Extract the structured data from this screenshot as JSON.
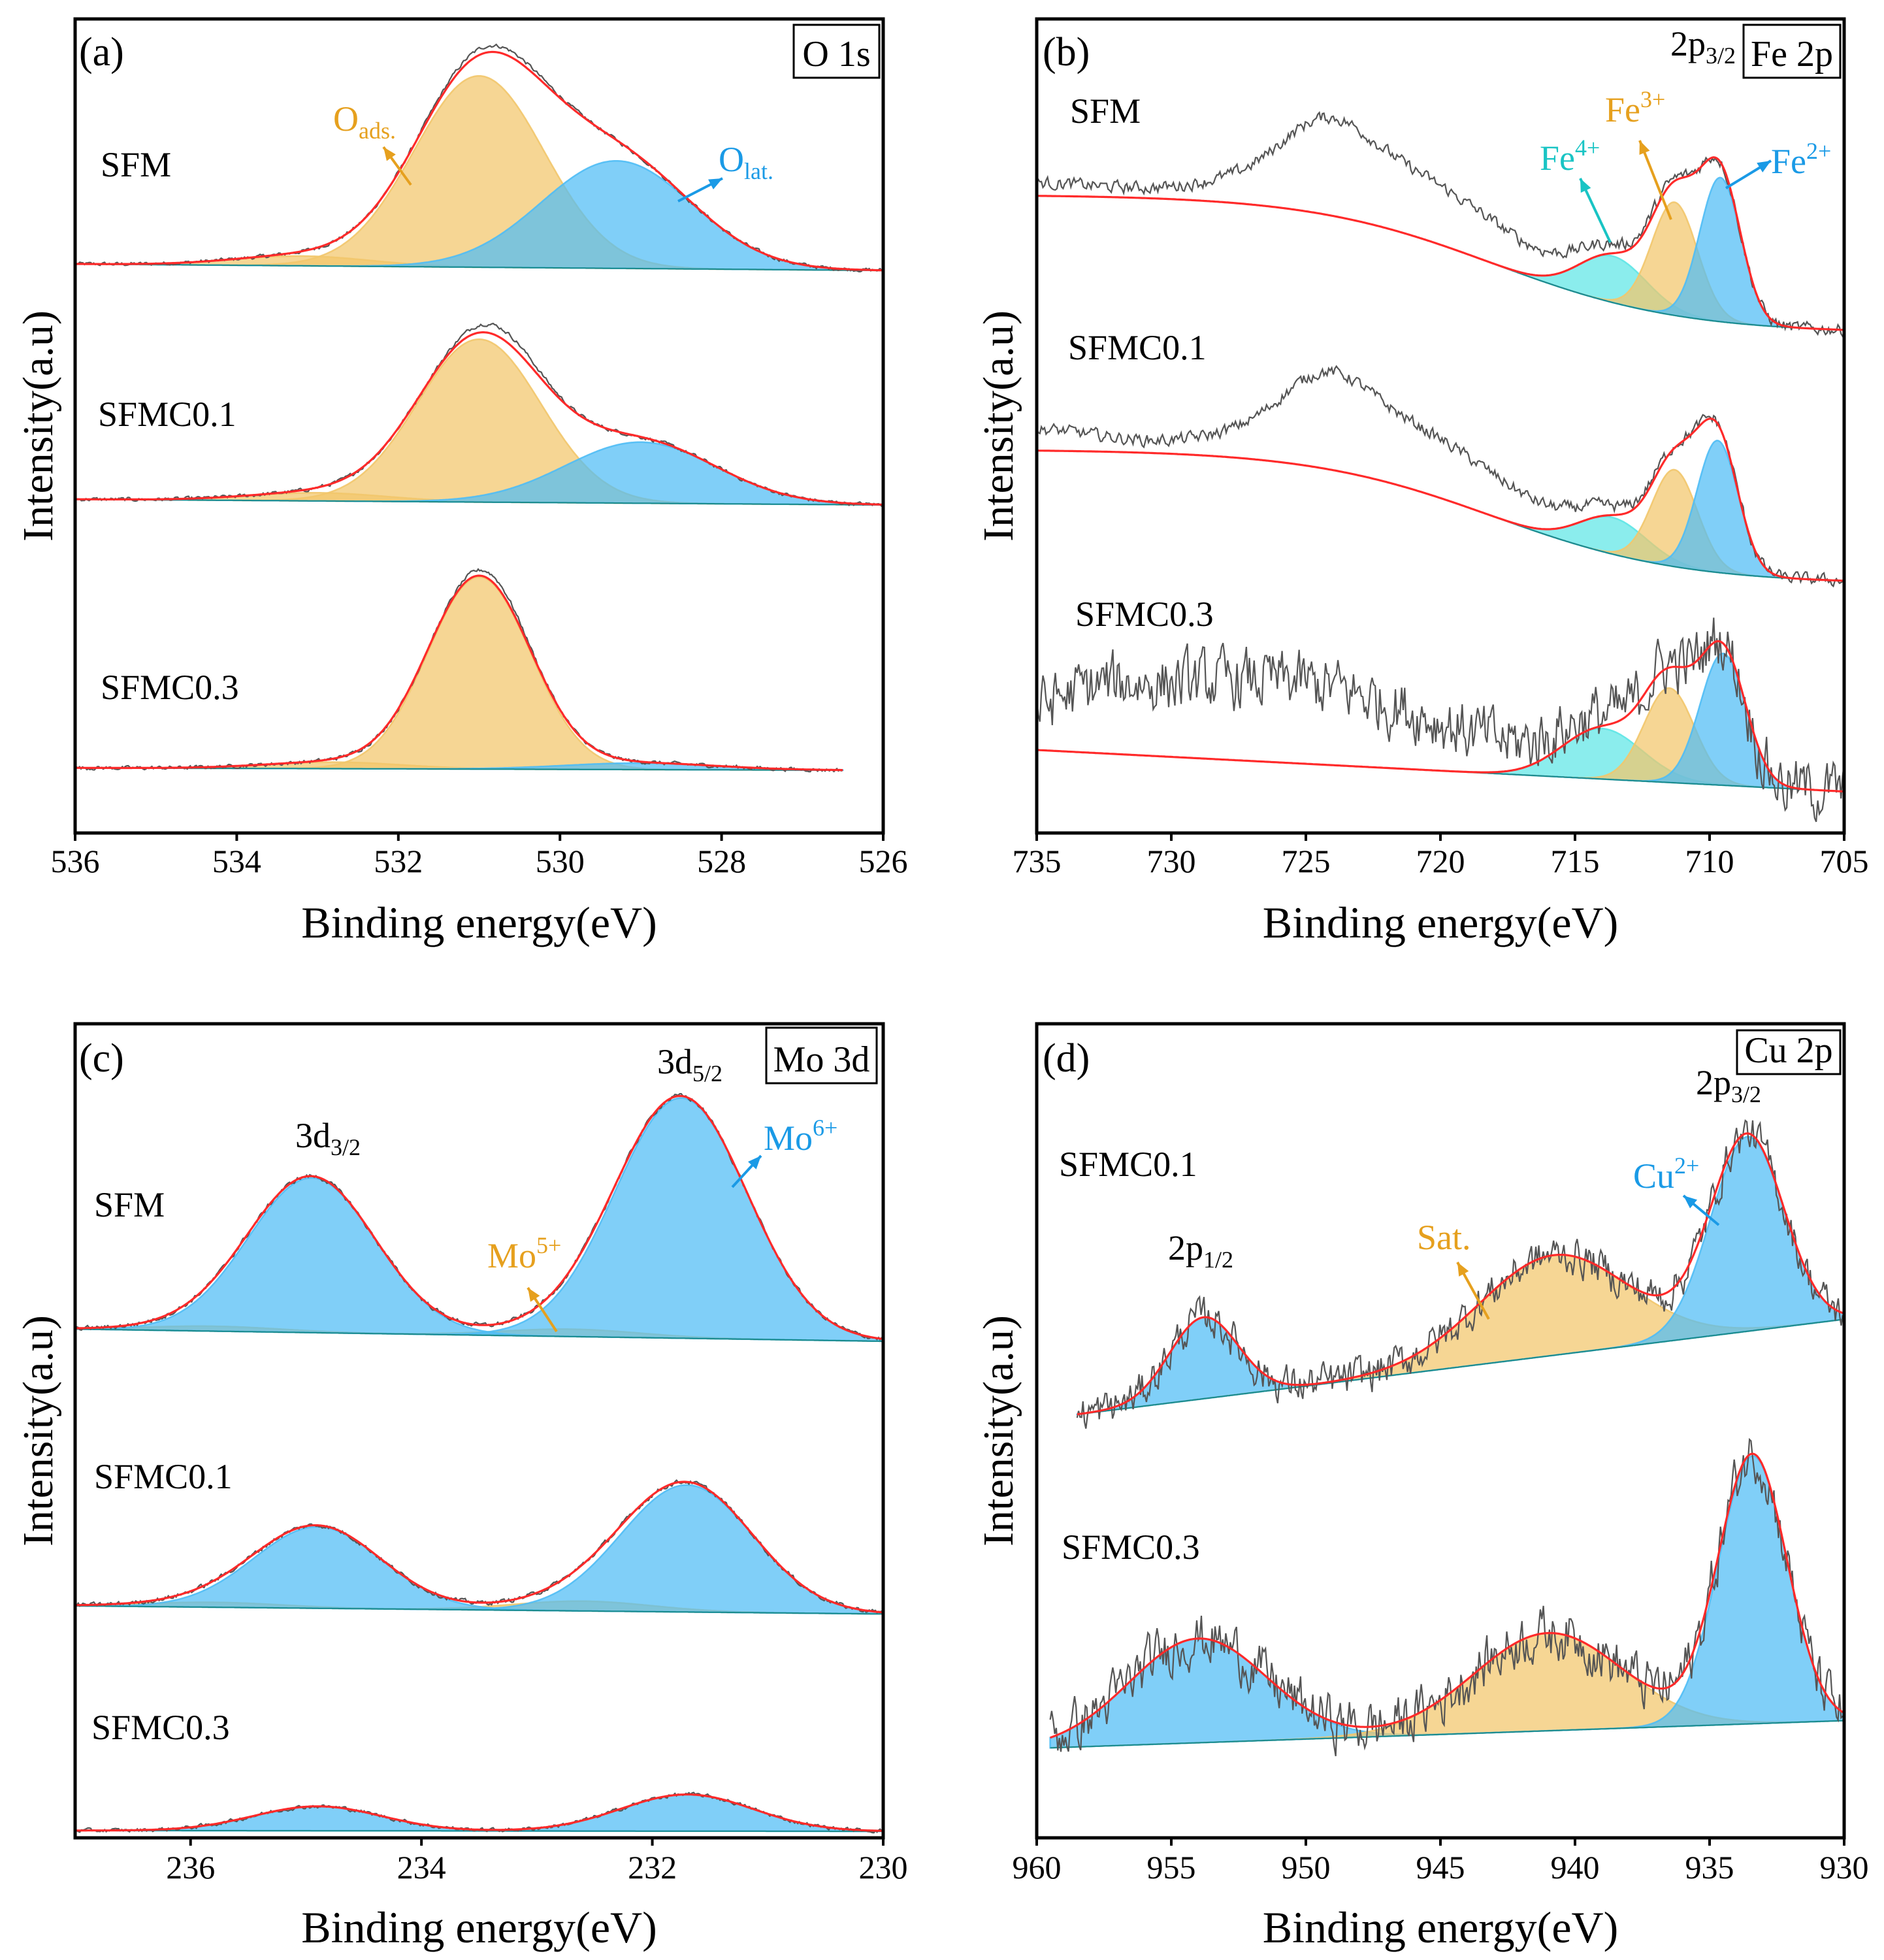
{
  "colors": {
    "orange": "#f2c66b",
    "blue": "#4fbdf5",
    "cyan": "#5ee6e6",
    "fit": "#ff2a2a",
    "raw": "#555555",
    "label_orange": "#e6a01e",
    "label_blue": "#1a9ae6",
    "label_cyan": "#19c4c4"
  },
  "chart_data": [
    {
      "id": "a",
      "type": "area",
      "panel_label": "(a)",
      "title": "O 1s",
      "xlabel": "Binding energy(eV)",
      "ylabel": "Intensity(a.u)",
      "xlim": [
        536,
        526
      ],
      "xticks": [
        536,
        534,
        532,
        530,
        528,
        526
      ],
      "ylim": [
        0,
        100
      ],
      "annotations": [
        {
          "id": "oads",
          "main": "O",
          "sub": "ads.",
          "sup": "",
          "color": "label_orange"
        },
        {
          "id": "olat",
          "main": "O",
          "sub": "lat.",
          "sup": "",
          "color": "label_blue"
        }
      ],
      "samples": [
        {
          "name": "SFM",
          "range": [
            536,
            526
          ],
          "baseline": {
            "type": "linear",
            "left": 69.9,
            "right": 69.1
          },
          "components": [
            {
              "name": "Oads",
              "center": 531.0,
              "fwhm": 1.9,
              "height": 23.5,
              "color": "orange"
            },
            {
              "name": "Oads-tail",
              "center": 533.2,
              "fwhm": 2.0,
              "height": 1.2,
              "color": "orange"
            },
            {
              "name": "Olat",
              "center": 529.3,
              "fwhm": 2.2,
              "height": 13.2,
              "color": "blue"
            }
          ],
          "raw_extra": [
            [
              530.8,
              0.8,
              1.2
            ]
          ],
          "noise": 0.25
        },
        {
          "name": "SFMC0.1",
          "range": [
            536,
            526
          ],
          "baseline": {
            "type": "linear",
            "left": 41.0,
            "right": 40.3
          },
          "components": [
            {
              "name": "Oads",
              "center": 531.0,
              "fwhm": 1.8,
              "height": 20,
              "color": "orange"
            },
            {
              "name": "Oads-tail",
              "center": 533.0,
              "fwhm": 2.0,
              "height": 1.0,
              "color": "orange"
            },
            {
              "name": "Olat",
              "center": 529.0,
              "fwhm": 2.2,
              "height": 7.5,
              "color": "blue"
            }
          ],
          "raw_extra": [
            [
              530.7,
              1.2,
              1.0
            ]
          ],
          "noise": 0.25
        },
        {
          "name": "SFMC0.3",
          "range": [
            536,
            526.5
          ],
          "baseline": {
            "type": "linear",
            "left": 8.0,
            "right": 7.7
          },
          "components": [
            {
              "name": "Oads",
              "center": 531.0,
              "fwhm": 1.5,
              "height": 23.6,
              "color": "orange"
            },
            {
              "name": "Oads-tail",
              "center": 532.8,
              "fwhm": 2.0,
              "height": 0.8,
              "color": "orange"
            },
            {
              "name": "Olat",
              "center": 529.0,
              "fwhm": 2.2,
              "height": 0.8,
              "color": "blue"
            }
          ],
          "raw_extra": [
            [
              530.8,
              0.8,
              0.8
            ]
          ],
          "noise": 0.25
        }
      ]
    },
    {
      "id": "b",
      "type": "area",
      "panel_label": "(b)",
      "title": "Fe 2p",
      "xlabel": "Binding energy(eV)",
      "ylabel": "Intensity(a.u)",
      "xlim": [
        735,
        705
      ],
      "xticks": [
        735,
        730,
        725,
        720,
        715,
        710,
        705
      ],
      "ylim": [
        0,
        100
      ],
      "annotations": [
        {
          "id": "fe2p32",
          "main": "2p",
          "sub": "3/2",
          "sup": "",
          "color": "black"
        },
        {
          "id": "fe3",
          "main": "Fe",
          "sub": "",
          "sup": "3+",
          "color": "label_orange"
        },
        {
          "id": "fe4",
          "main": "Fe",
          "sub": "",
          "sup": "4+",
          "color": "label_cyan"
        },
        {
          "id": "fe2",
          "main": "Fe",
          "sub": "",
          "sup": "2+",
          "color": "label_blue"
        }
      ],
      "samples": [
        {
          "name": "SFM",
          "range": [
            735,
            705
          ],
          "baseline": {
            "type": "step",
            "left": 78.4,
            "right": 61.4,
            "center": 718,
            "width": 3.5
          },
          "components": [
            {
              "name": "Fe4+",
              "center": 713.6,
              "fwhm": 3.0,
              "height": 5.7,
              "color": "cyan"
            },
            {
              "name": "Fe3+",
              "center": 711.3,
              "fwhm": 2.0,
              "height": 13.9,
              "color": "orange"
            },
            {
              "name": "Fe2+",
              "center": 709.6,
              "fwhm": 1.8,
              "height": 17.7,
              "color": "blue"
            }
          ],
          "raw_extra": [
            [
              722,
              8,
              10
            ],
            [
              724.3,
              5,
              3.5
            ],
            [
              735,
              1.5,
              6
            ]
          ],
          "noise": 0.8
        },
        {
          "name": "SFMC0.1",
          "range": [
            735,
            705
          ],
          "baseline": {
            "type": "step",
            "left": 47.1,
            "right": 30.6,
            "center": 718,
            "width": 3.5
          },
          "components": [
            {
              "name": "Fe4+",
              "center": 713.6,
              "fwhm": 3.0,
              "height": 4.5,
              "color": "cyan"
            },
            {
              "name": "Fe3+",
              "center": 711.3,
              "fwhm": 2.0,
              "height": 11.9,
              "color": "orange"
            },
            {
              "name": "Fe2+",
              "center": 709.7,
              "fwhm": 1.8,
              "height": 16.2,
              "color": "blue"
            }
          ],
          "raw_extra": [
            [
              722,
              8,
              10
            ],
            [
              724.3,
              5,
              3.5
            ],
            [
              735,
              2.5,
              6
            ]
          ],
          "noise": 0.8
        },
        {
          "name": "SFMC0.3",
          "range": [
            735,
            705
          ],
          "baseline": {
            "type": "linear",
            "left": 10.2,
            "right": 5.1
          },
          "components": [
            {
              "name": "Fe4+",
              "center": 714.0,
              "fwhm": 3.5,
              "height": 6.2,
              "color": "cyan"
            },
            {
              "name": "Fe3+",
              "center": 711.5,
              "fwhm": 2.2,
              "height": 11.6,
              "color": "orange"
            },
            {
              "name": "Fe2+",
              "center": 709.5,
              "fwhm": 2.0,
              "height": 16.2,
              "color": "blue"
            }
          ],
          "raw_extra": [
            [
              726,
              10,
              14
            ],
            [
              733,
              3,
              5
            ]
          ],
          "noise": 4.0
        }
      ]
    },
    {
      "id": "c",
      "type": "area",
      "panel_label": "(c)",
      "title": "Mo 3d",
      "xlabel": "Binding energy(eV)",
      "ylabel": "Intensity(a.u)",
      "xlim": [
        237,
        230
      ],
      "xticks": [
        236,
        234,
        232,
        230
      ],
      "ylim": [
        0,
        100
      ],
      "annotations": [
        {
          "id": "mo3d32",
          "main": "3d",
          "sub": "3/2",
          "sup": "",
          "color": "black"
        },
        {
          "id": "mo3d52",
          "main": "3d",
          "sub": "5/2",
          "sup": "",
          "color": "black"
        },
        {
          "id": "mo6",
          "main": "Mo",
          "sub": "",
          "sup": "6+",
          "color": "label_blue"
        },
        {
          "id": "mo5",
          "main": "Mo",
          "sub": "",
          "sup": "5+",
          "color": "label_orange"
        }
      ],
      "samples": [
        {
          "name": "SFM",
          "range": [
            237,
            230
          ],
          "baseline": {
            "type": "linear",
            "left": 62.5,
            "right": 61.0
          },
          "components": [
            {
              "name": "Mo5+ 3d3/2",
              "center": 235.8,
              "fwhm": 1.4,
              "height": 0.6,
              "color": "orange"
            },
            {
              "name": "Mo5+ 3d5/2",
              "center": 232.7,
              "fwhm": 1.4,
              "height": 0.9,
              "color": "orange"
            },
            {
              "name": "Mo6+ 3d3/2",
              "center": 234.95,
              "fwhm": 1.3,
              "height": 19,
              "color": "blue"
            },
            {
              "name": "Mo6+ 3d5/2",
              "center": 231.75,
              "fwhm": 1.35,
              "height": 29.5,
              "color": "blue"
            }
          ],
          "raw_extra": [],
          "noise": 0.3
        },
        {
          "name": "SFMC0.1",
          "range": [
            237,
            230
          ],
          "baseline": {
            "type": "linear",
            "left": 28.5,
            "right": 27.5
          },
          "components": [
            {
              "name": "Mo5+ 3d3/2",
              "center": 235.8,
              "fwhm": 1.4,
              "height": 0.6,
              "color": "orange"
            },
            {
              "name": "Mo5+ 3d5/2",
              "center": 232.6,
              "fwhm": 1.4,
              "height": 1.2,
              "color": "orange"
            },
            {
              "name": "Mo6+ 3d3/2",
              "center": 234.9,
              "fwhm": 1.3,
              "height": 10,
              "color": "blue"
            },
            {
              "name": "Mo6+ 3d5/2",
              "center": 231.7,
              "fwhm": 1.35,
              "height": 15.6,
              "color": "blue"
            }
          ],
          "raw_extra": [],
          "noise": 0.3
        },
        {
          "name": "SFMC0.3",
          "range": [
            237,
            230
          ],
          "baseline": {
            "type": "linear",
            "left": 0.9,
            "right": 0.8
          },
          "components": [
            {
              "name": "Mo6+ 3d3/2",
              "center": 234.9,
              "fwhm": 1.3,
              "height": 3,
              "color": "blue"
            },
            {
              "name": "Mo6+ 3d5/2",
              "center": 231.7,
              "fwhm": 1.35,
              "height": 4.5,
              "color": "blue"
            }
          ],
          "raw_extra": [],
          "noise": 0.25
        }
      ]
    },
    {
      "id": "d",
      "type": "area",
      "panel_label": "(d)",
      "title": "Cu 2p",
      "xlabel": "Binding energy(eV)",
      "ylabel": "Intensity(a.u)",
      "xlim": [
        960,
        930
      ],
      "xticks": [
        960,
        955,
        950,
        945,
        940,
        935,
        930
      ],
      "ylim": [
        0,
        100
      ],
      "annotations": [
        {
          "id": "cu2p32",
          "main": "2p",
          "sub": "3/2",
          "sup": "",
          "color": "black"
        },
        {
          "id": "cu2p12",
          "main": "2p",
          "sub": "1/2",
          "sup": "",
          "color": "black"
        },
        {
          "id": "sat",
          "main": "Sat.",
          "sub": "",
          "sup": "",
          "color": "label_orange"
        },
        {
          "id": "cu2",
          "main": "Cu",
          "sub": "",
          "sup": "2+",
          "color": "label_blue"
        }
      ],
      "samples": [
        {
          "name": "SFMC0.1",
          "range": [
            958.5,
            930
          ],
          "baseline": {
            "type": "linear",
            "left": 51.4,
            "right": 63.7
          },
          "components": [
            {
              "name": "2p1/2",
              "center": 953.8,
              "fwhm": 3.0,
              "height": 10,
              "color": "blue"
            },
            {
              "name": "Sat.",
              "center": 940.8,
              "fwhm": 6.5,
              "height": 12.3,
              "color": "orange"
            },
            {
              "name": "Cu2+",
              "center": 933.6,
              "fwhm": 3.2,
              "height": 23.9,
              "color": "blue"
            }
          ],
          "raw_extra": [],
          "noise": 2.5
        },
        {
          "name": "SFMC0.3",
          "range": [
            959.5,
            930
          ],
          "baseline": {
            "type": "linear",
            "left": 11.0,
            "right": 14.4
          },
          "components": [
            {
              "name": "2p1/2",
              "center": 954.0,
              "fwhm": 6.0,
              "height": 12.8,
              "color": "blue"
            },
            {
              "name": "Sat.",
              "center": 941.0,
              "fwhm": 6.5,
              "height": 12,
              "color": "orange"
            },
            {
              "name": "Cu2+",
              "center": 933.4,
              "fwhm": 3.0,
              "height": 32.9,
              "color": "blue"
            }
          ],
          "raw_extra": [],
          "noise": 3.5
        }
      ]
    }
  ]
}
